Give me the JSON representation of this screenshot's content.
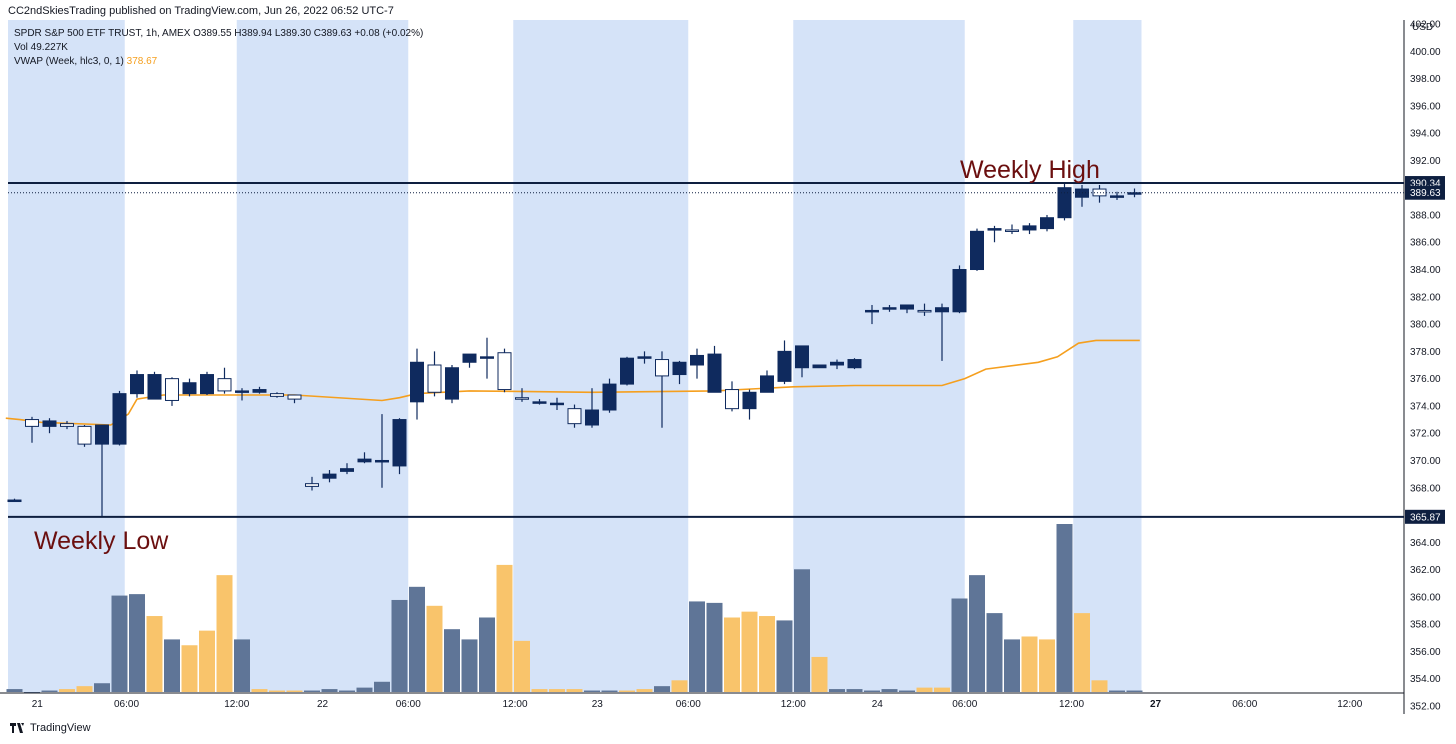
{
  "header": {
    "published": "CC2ndSkiesTrading published on TradingView.com, Jun 26, 2022 06:52 UTC-7"
  },
  "legend": {
    "symbol_line": "SPDR S&P 500 ETF TRUST, 1h, AMEX  O389.55  H389.94  L389.30  C389.63  +0.08 (+0.02%)",
    "vol_line": "Vol  49.227K",
    "vwap_label": "VWAP (Week, hlc3, 0, 1)",
    "vwap_value": "378.67"
  },
  "annotations": {
    "weekly_high": "Weekly High",
    "weekly_low": "Weekly Low"
  },
  "footer": {
    "brand": "TradingView"
  },
  "colors": {
    "bull": "#ffffff",
    "bear": "#0f2a5e",
    "shade": "#d5e3f8",
    "vwap": "#f59f1e",
    "vol_blue": "#5f7597",
    "vol_orange": "#f9c46b",
    "level_line": "#0e1f40",
    "annotation": "#6b0f0f"
  },
  "chart_data": {
    "type": "candlestick",
    "title": "SPDR S&P 500 ETF TRUST, 1h, AMEX",
    "ylabel": "USD",
    "ylim": [
      351.2,
      403.5
    ],
    "price_ticks": [
      "402.00",
      "400.00",
      "398.00",
      "396.00",
      "394.00",
      "392.00",
      "390.00",
      "388.00",
      "386.00",
      "384.00",
      "382.00",
      "380.00",
      "378.00",
      "376.00",
      "374.00",
      "372.00",
      "370.00",
      "368.00",
      "364.00",
      "362.00",
      "360.00",
      "358.00",
      "356.00",
      "354.00",
      "352.00"
    ],
    "price_tick_values": [
      402,
      400,
      398,
      396,
      394,
      392,
      390,
      388,
      386,
      384,
      382,
      380,
      378,
      376,
      374,
      372,
      370,
      368,
      364,
      362,
      360,
      358,
      356,
      354,
      352
    ],
    "x_labels": [
      "21",
      "06:00",
      "12:00",
      "22",
      "06:00",
      "12:00",
      "23",
      "06:00",
      "12:00",
      "24",
      "06:00",
      "12:00",
      "27",
      "06:00",
      "12:00"
    ],
    "x_label_index": [
      1.3,
      6.4,
      12.7,
      17.6,
      22.5,
      28.6,
      33.3,
      38.5,
      44.5,
      49.3,
      54.3,
      60.4,
      65.2,
      70.3,
      76.3
    ],
    "shaded_ranges": [
      [
        -0.5,
        6.3
      ],
      [
        12.7,
        22.5
      ],
      [
        28.5,
        38.5
      ],
      [
        44.5,
        54.3
      ],
      [
        60.5,
        64.4
      ]
    ],
    "levels": [
      {
        "name": "weekly high",
        "value": 390.34,
        "label": "390.34"
      },
      {
        "name": "last price",
        "value": 389.63,
        "label": "389.63"
      },
      {
        "name": "weekly low",
        "value": 365.87,
        "label": "365.87"
      }
    ],
    "candles": [
      [
        367.1,
        367.2,
        367.0,
        367.1
      ],
      [
        373.0,
        373.2,
        371.3,
        372.5
      ],
      [
        372.5,
        373.1,
        372.0,
        372.9
      ],
      [
        372.7,
        372.9,
        372.3,
        372.5
      ],
      [
        372.5,
        372.6,
        371.0,
        371.2
      ],
      [
        371.2,
        372.6,
        365.9,
        372.6
      ],
      [
        371.2,
        375.1,
        371.1,
        374.9
      ],
      [
        374.9,
        376.6,
        374.6,
        376.3
      ],
      [
        374.5,
        376.5,
        374.5,
        376.3
      ],
      [
        376.0,
        376.1,
        374.0,
        374.4
      ],
      [
        374.9,
        376.0,
        374.7,
        375.7
      ],
      [
        374.9,
        376.5,
        374.8,
        376.3
      ],
      [
        376.0,
        376.8,
        374.9,
        375.1
      ],
      [
        375.0,
        375.3,
        374.4,
        375.1
      ],
      [
        375.0,
        375.4,
        374.9,
        375.2
      ],
      [
        374.9,
        375.0,
        374.6,
        374.7
      ],
      [
        374.8,
        374.8,
        374.2,
        374.5
      ],
      [
        368.3,
        368.8,
        367.8,
        368.1
      ],
      [
        368.7,
        369.3,
        368.4,
        369.0
      ],
      [
        369.2,
        369.8,
        369.0,
        369.4
      ],
      [
        369.9,
        370.6,
        369.8,
        370.1
      ],
      [
        370.0,
        373.4,
        368.0,
        370.0
      ],
      [
        369.6,
        373.1,
        369.0,
        373.0
      ],
      [
        374.3,
        378.2,
        373.0,
        377.2
      ],
      [
        377.0,
        378.0,
        374.7,
        375.0
      ],
      [
        374.5,
        377.0,
        374.2,
        376.8
      ],
      [
        377.2,
        377.6,
        376.8,
        377.8
      ],
      [
        377.6,
        379.0,
        376.0,
        377.6
      ],
      [
        377.9,
        378.2,
        375.0,
        375.2
      ],
      [
        374.6,
        375.3,
        374.3,
        374.5
      ],
      [
        374.3,
        374.5,
        374.1,
        374.3
      ],
      [
        374.2,
        374.6,
        373.7,
        374.2
      ],
      [
        373.8,
        374.1,
        372.4,
        372.7
      ],
      [
        372.6,
        375.3,
        372.4,
        373.7
      ],
      [
        373.7,
        376.0,
        373.5,
        375.6
      ],
      [
        375.6,
        377.6,
        375.5,
        377.5
      ],
      [
        377.5,
        378.0,
        377.1,
        377.6
      ],
      [
        377.4,
        378.0,
        372.4,
        376.2
      ],
      [
        376.3,
        377.3,
        375.6,
        377.2
      ],
      [
        377.0,
        378.2,
        376.0,
        377.7
      ],
      [
        375.0,
        378.4,
        375.0,
        377.8
      ],
      [
        375.2,
        375.8,
        373.6,
        373.8
      ],
      [
        373.8,
        375.2,
        373.0,
        375.0
      ],
      [
        375.0,
        376.6,
        375.0,
        376.2
      ],
      [
        375.8,
        378.8,
        375.6,
        378.0
      ],
      [
        376.8,
        378.4,
        376.1,
        378.4
      ],
      [
        376.8,
        377.0,
        376.8,
        377.0
      ],
      [
        377.0,
        377.4,
        376.7,
        377.2
      ],
      [
        376.8,
        377.5,
        376.7,
        377.4
      ],
      [
        381.0,
        381.4,
        380.0,
        381.0
      ],
      [
        381.1,
        381.4,
        380.9,
        381.2
      ],
      [
        381.1,
        381.4,
        380.8,
        381.4
      ],
      [
        381.0,
        381.5,
        380.6,
        380.9
      ],
      [
        380.9,
        381.5,
        377.3,
        381.2
      ],
      [
        380.9,
        384.3,
        380.8,
        384.0
      ],
      [
        384.0,
        387.0,
        383.9,
        386.8
      ],
      [
        386.9,
        387.2,
        386.0,
        387.0
      ],
      [
        386.9,
        387.3,
        386.6,
        386.8
      ],
      [
        386.9,
        387.4,
        386.6,
        387.2
      ],
      [
        387.0,
        388.0,
        386.8,
        387.8
      ],
      [
        387.8,
        390.34,
        387.6,
        390.0
      ],
      [
        389.3,
        390.2,
        388.6,
        389.9
      ],
      [
        389.9,
        390.2,
        388.9,
        389.4
      ],
      [
        389.3,
        389.7,
        389.1,
        389.4
      ],
      [
        389.55,
        389.94,
        389.3,
        389.63
      ]
    ],
    "candle_fields": [
      "open",
      "high",
      "low",
      "close"
    ],
    "vwap": [
      [
        -0.5,
        373.1
      ],
      [
        0.3,
        373.0
      ],
      [
        1.5,
        372.8
      ],
      [
        5.5,
        372.6
      ],
      [
        6.5,
        373.4
      ],
      [
        7.0,
        374.5
      ],
      [
        8.5,
        374.8
      ],
      [
        12,
        374.8
      ],
      [
        16,
        374.8
      ],
      [
        21,
        374.4
      ],
      [
        22,
        374.6
      ],
      [
        23,
        374.9
      ],
      [
        26,
        375.1
      ],
      [
        33,
        375.0
      ],
      [
        40,
        375.1
      ],
      [
        44.5,
        375.4
      ],
      [
        48,
        375.5
      ],
      [
        53,
        375.5
      ],
      [
        54.3,
        376.0
      ],
      [
        55.5,
        376.7
      ],
      [
        58.5,
        377.2
      ],
      [
        59.6,
        377.6
      ],
      [
        60.8,
        378.6
      ],
      [
        61.8,
        378.8
      ],
      [
        64.3,
        378.8
      ]
    ],
    "volume": {
      "label": "Vol",
      "values": [
        2,
        0,
        1,
        2,
        4,
        6,
        66,
        67,
        52,
        36,
        32,
        42,
        80,
        36,
        2,
        1,
        1,
        1,
        2,
        1,
        3,
        7,
        63,
        72,
        59,
        43,
        36,
        51,
        87,
        35,
        2,
        2,
        2,
        1,
        1,
        1,
        2,
        4,
        8,
        62,
        61,
        51,
        55,
        52,
        49,
        84,
        24,
        2,
        2,
        1,
        2,
        1,
        3,
        3,
        64,
        80,
        54,
        36,
        38,
        36,
        115,
        54,
        8,
        1,
        1
      ],
      "colors": [
        "b",
        "b",
        "b",
        "o",
        "o",
        "b",
        "b",
        "b",
        "o",
        "b",
        "o",
        "o",
        "o",
        "b",
        "o",
        "o",
        "o",
        "b",
        "b",
        "b",
        "b",
        "b",
        "b",
        "b",
        "o",
        "b",
        "b",
        "b",
        "o",
        "o",
        "o",
        "o",
        "o",
        "b",
        "b",
        "o",
        "o",
        "b",
        "o",
        "b",
        "b",
        "o",
        "o",
        "o",
        "b",
        "b",
        "o",
        "b",
        "b",
        "b",
        "b",
        "b",
        "o",
        "o",
        "b",
        "b",
        "b",
        "b",
        "o",
        "o",
        "b",
        "o",
        "o",
        "b",
        "b"
      ]
    }
  }
}
